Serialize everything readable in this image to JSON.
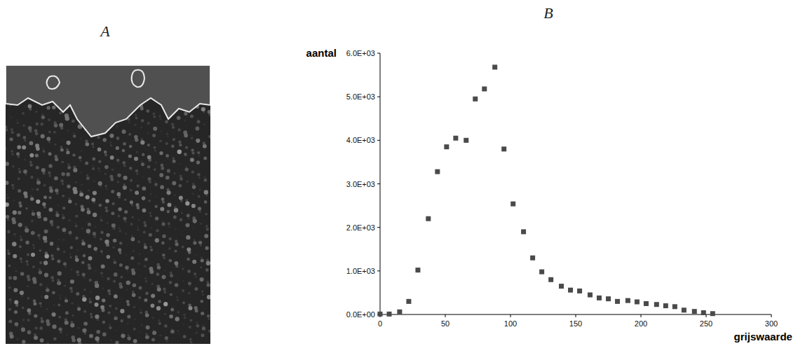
{
  "panel_labels": [
    "A",
    "B"
  ],
  "chart_data": {
    "type": "scatter",
    "x_label": "grijswaarde",
    "y_label": "aantal",
    "x": [
      0,
      7,
      15,
      22,
      29,
      37,
      44,
      51,
      58,
      66,
      73,
      80,
      88,
      95,
      102,
      110,
      117,
      124,
      131,
      139,
      146,
      153,
      161,
      168,
      175,
      182,
      190,
      197,
      204,
      212,
      219,
      226,
      233,
      241,
      248,
      255
    ],
    "values": [
      10,
      10,
      60,
      300,
      1020,
      2200,
      3280,
      3850,
      4050,
      4000,
      4950,
      5180,
      5680,
      3800,
      2540,
      1900,
      1300,
      980,
      800,
      650,
      560,
      540,
      450,
      380,
      360,
      300,
      320,
      290,
      250,
      230,
      200,
      180,
      100,
      70,
      40,
      20
    ],
    "color": "#4a4a4a",
    "marker": "square",
    "xlim": [
      0,
      300
    ],
    "ylim": [
      0,
      6000
    ],
    "xticks": [
      0,
      50,
      100,
      150,
      200,
      250,
      300
    ],
    "yticks": [
      {
        "value": 0,
        "label": "0.0E+00"
      },
      {
        "value": 1000,
        "label": "1.0E+03"
      },
      {
        "value": 2000,
        "label": "2.0E+03"
      },
      {
        "value": 3000,
        "label": "3.0E+03"
      },
      {
        "value": 4000,
        "label": "4.0E+03"
      },
      {
        "value": 5000,
        "label": "5.0E+03"
      },
      {
        "value": 6000,
        "label": "6.0E+03"
      }
    ],
    "grid": false
  }
}
